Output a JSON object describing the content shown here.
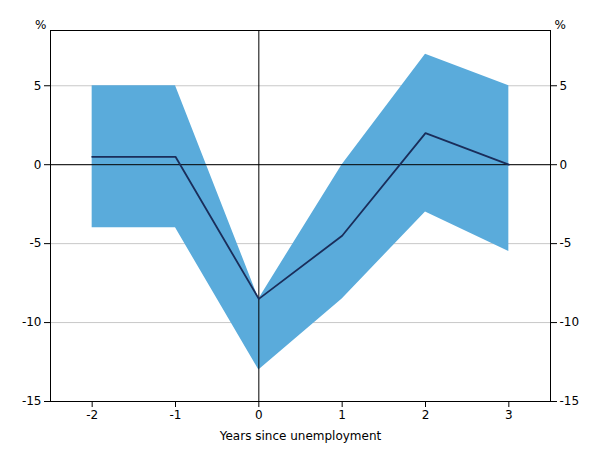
{
  "chart_data": {
    "type": "line",
    "x_label": "Years since unemployment",
    "y_label": "%",
    "y2_label": "%",
    "x": [
      -2,
      -1,
      0,
      1,
      2,
      3
    ],
    "values": [
      0.5,
      0.5,
      -8.5,
      -4.5,
      2.0,
      0.0
    ],
    "upper": [
      5.0,
      5.0,
      -8.5,
      0.0,
      7.0,
      5.0
    ],
    "lower": [
      -4.0,
      -4.0,
      -13.0,
      -8.5,
      -3.0,
      -5.5
    ],
    "color": "#1a2d5a",
    "band_color": "#5aabdb",
    "grid_color": "#c8c8c8",
    "xlim": [
      -2.5,
      3.5
    ],
    "xticks": [
      -2,
      -1,
      0,
      1,
      2,
      3
    ],
    "ylim": [
      -15,
      8.5
    ],
    "yticks": [
      -15,
      -10,
      -5,
      0,
      5
    ],
    "hline": 0,
    "vline": 0,
    "grid": true
  }
}
